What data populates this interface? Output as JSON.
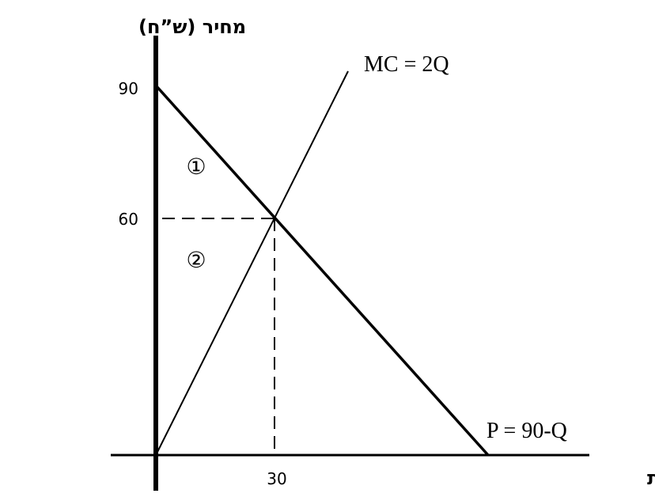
{
  "axes": {
    "y_label": "מחיר (ש”ח)",
    "x_label": "כמות"
  },
  "ticks": {
    "y": [
      "90",
      "60"
    ],
    "x": [
      "30"
    ]
  },
  "curves": {
    "mc": "MC = 2Q",
    "demand": "P = 90-Q"
  },
  "areas": [
    "①",
    "②"
  ]
}
